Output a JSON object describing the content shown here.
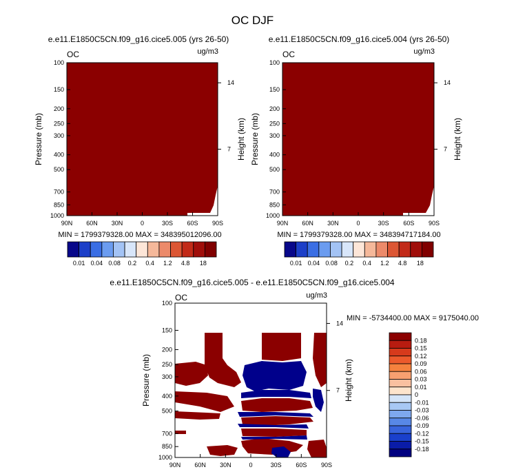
{
  "figure": {
    "title": "OC DJF"
  },
  "chart_data": [
    {
      "type": "heatmap",
      "title": "e.e11.E1850C5CN.f09_g16.cice5.005 (yrs 26-50)",
      "left_label": "OC",
      "units": "ug/m3",
      "ylabel": "Pressure (mb)",
      "ylabel_right": "Height (km)",
      "x_ticks": [
        "90N",
        "60N",
        "30N",
        "0",
        "30S",
        "60S",
        "90S"
      ],
      "y_ticks": [
        100,
        150,
        200,
        250,
        300,
        400,
        500,
        700,
        850,
        1000
      ],
      "y_right_ticks": [
        14,
        7
      ],
      "ylim": [
        1000,
        100
      ],
      "min_max": "MIN = 1799379328.00  MAX = 348395012096.00",
      "fill_color": "#8b0000",
      "colorbar": {
        "orientation": "horizontal",
        "labels": [
          "0.01",
          "0.04",
          "0.08",
          "0.2",
          "0.4",
          "1.2",
          "4.8",
          "18"
        ],
        "colors": [
          "#08088a",
          "#1c3fc8",
          "#3a6ee4",
          "#6b9cf0",
          "#a3c3f5",
          "#d8e6fa",
          "#fde6d8",
          "#f5b89a",
          "#ec8a6a",
          "#dc5634",
          "#c22a18",
          "#a00e0a",
          "#800000"
        ]
      }
    },
    {
      "type": "heatmap",
      "title": "e.e11.E1850C5CN.f09_g16.cice5.004 (yrs 26-50)",
      "left_label": "OC",
      "units": "ug/m3",
      "ylabel": "Pressure (mb)",
      "ylabel_right": "Height (km)",
      "x_ticks": [
        "90N",
        "60N",
        "30N",
        "0",
        "30S",
        "60S",
        "90S"
      ],
      "y_ticks": [
        100,
        150,
        200,
        250,
        300,
        400,
        500,
        700,
        850,
        1000
      ],
      "y_right_ticks": [
        14,
        7
      ],
      "ylim": [
        1000,
        100
      ],
      "min_max": "MIN = 1799379328.00  MAX = 348394717184.00",
      "fill_color": "#8b0000",
      "colorbar": {
        "orientation": "horizontal",
        "labels": [
          "0.01",
          "0.04",
          "0.08",
          "0.2",
          "0.4",
          "1.2",
          "4.8",
          "18"
        ],
        "colors": [
          "#08088a",
          "#1c3fc8",
          "#3a6ee4",
          "#6b9cf0",
          "#a3c3f5",
          "#d8e6fa",
          "#fde6d8",
          "#f5b89a",
          "#ec8a6a",
          "#dc5634",
          "#c22a18",
          "#a00e0a",
          "#800000"
        ]
      }
    },
    {
      "type": "heatmap",
      "title": "e.e11.E1850C5CN.f09_g16.cice5.005 - e.e11.E1850C5CN.f09_g16.cice5.004",
      "left_label": "OC",
      "units": "ug/m3",
      "ylabel": "Pressure (mb)",
      "ylabel_right": "Height (km)",
      "x_ticks": [
        "90N",
        "60N",
        "30N",
        "0",
        "30S",
        "60S",
        "90S"
      ],
      "y_ticks": [
        100,
        150,
        200,
        250,
        300,
        400,
        500,
        700,
        850,
        1000
      ],
      "y_right_ticks": [
        14,
        7
      ],
      "ylim": [
        1000,
        100
      ],
      "min_max": "MIN = -5734400.00  MAX = 9175040.00",
      "positive_color": "#8b0000",
      "negative_color": "#00008b",
      "colorbar": {
        "orientation": "vertical",
        "labels": [
          "0.18",
          "0.15",
          "0.12",
          "0.09",
          "0.06",
          "0.03",
          "0.01",
          "0",
          "-0.01",
          "-0.03",
          "-0.06",
          "-0.09",
          "-0.12",
          "-0.15",
          "-0.18"
        ],
        "colors": [
          "#8b0000",
          "#b81c10",
          "#d63a1c",
          "#ec5a2c",
          "#f5823e",
          "#f7a070",
          "#f9c0a0",
          "#fde4cc",
          "#d4e4f8",
          "#a8c8f4",
          "#7ea8ee",
          "#5888e6",
          "#3864dc",
          "#1a40cc",
          "#0a1ca8",
          "#000080"
        ]
      }
    }
  ]
}
